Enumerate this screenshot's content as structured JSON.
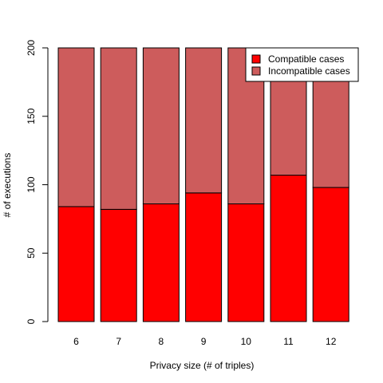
{
  "chart_data": {
    "type": "bar",
    "stacked": true,
    "categories": [
      "6",
      "7",
      "8",
      "9",
      "10",
      "11",
      "12"
    ],
    "series": [
      {
        "name": "Compatible cases",
        "color": "#ff0000",
        "values": [
          84,
          82,
          86,
          94,
          86,
          107,
          98
        ]
      },
      {
        "name": "Incompatible cases",
        "color": "#cd5c5c",
        "values": [
          116,
          118,
          114,
          106,
          114,
          93,
          102
        ]
      }
    ],
    "xlabel": "Privacy size (# of triples)",
    "ylabel": "# of executions",
    "ylim": [
      0,
      200
    ],
    "yticks": [
      0,
      50,
      100,
      150,
      200
    ],
    "grid": false,
    "legend_position": "top-right"
  }
}
